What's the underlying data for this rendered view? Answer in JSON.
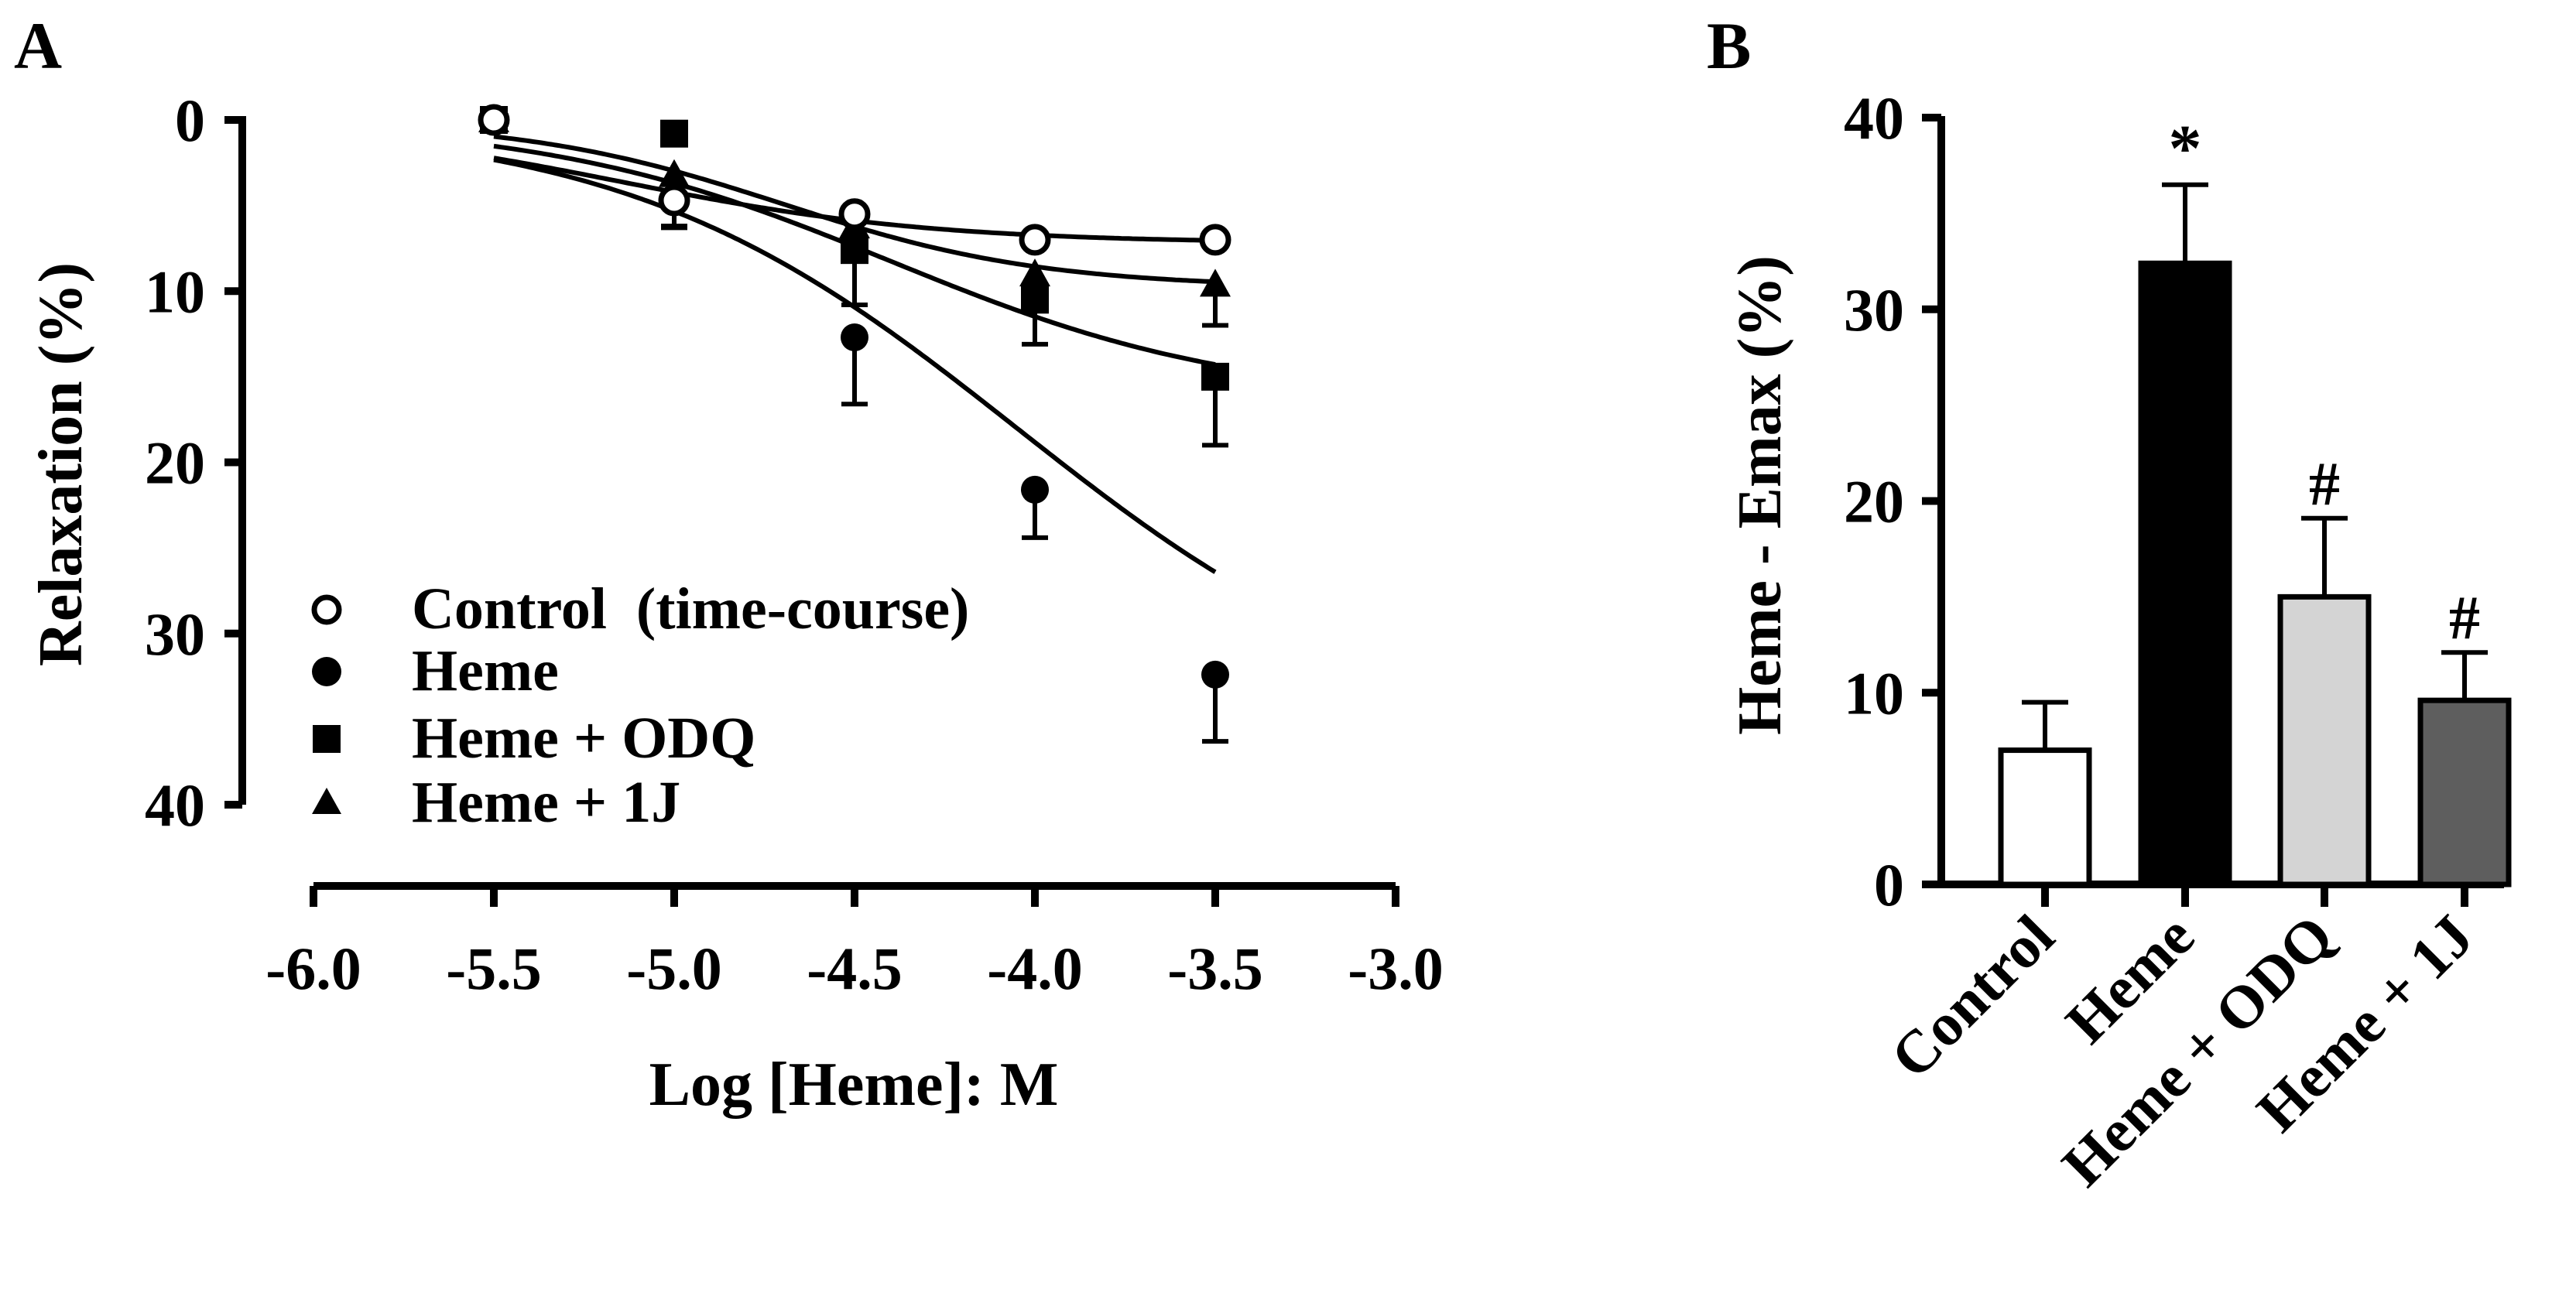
{
  "chart_data": [
    {
      "panel_label": "A",
      "type": "line",
      "xlabel": "Log [Heme]: M",
      "ylabel": "Relaxation (%)",
      "xlim": [
        -6.0,
        -3.0
      ],
      "ylim": [
        0,
        40
      ],
      "y_inverted": true,
      "x_ticks": [
        -6.0,
        -5.5,
        -5.0,
        -4.5,
        -4.0,
        -3.5,
        -3.0
      ],
      "x_tick_labels": [
        "-6.0",
        "-5.5",
        "-5.0",
        "-4.5",
        "-4.0",
        "-3.5",
        "-3.0"
      ],
      "y_ticks": [
        0,
        10,
        20,
        30,
        40
      ],
      "y_tick_labels": [
        "0",
        "10",
        "20",
        "30",
        "40"
      ],
      "grid": false,
      "legend_position": "bottom-left",
      "series": [
        {
          "name": "Control  (time-course)",
          "marker": "open-circle",
          "x": [
            -5.5,
            -5.0,
            -4.5,
            -4.0,
            -3.5
          ],
          "values": [
            0.0,
            4.7,
            5.5,
            7.0,
            7.0
          ],
          "error": [
            0.0,
            1.5,
            0.0,
            0.0,
            0.0
          ],
          "fit": {
            "bottom": 7.2,
            "top": 0.0,
            "logEC50": -5.15,
            "hill": 1.0
          }
        },
        {
          "name": "Heme",
          "marker": "filled-circle",
          "x": [
            -5.5,
            -5.0,
            -4.5,
            -4.0,
            -3.5
          ],
          "values": [
            0.0,
            4.8,
            12.7,
            21.6,
            32.4
          ],
          "error": [
            0.0,
            1.5,
            3.9,
            2.8,
            3.9
          ],
          "fit": {
            "bottom": 36.0,
            "top": 0.0,
            "logEC50": -4.05,
            "hill": 0.8
          }
        },
        {
          "name": "Heme + ODQ",
          "marker": "filled-square",
          "x": [
            -5.5,
            -5.0,
            -4.5,
            -4.0,
            -3.5
          ],
          "values": [
            0.0,
            0.8,
            7.6,
            10.5,
            15.0
          ],
          "error": [
            0.0,
            0.0,
            3.2,
            2.6,
            4.0
          ],
          "fit": {
            "bottom": 16.5,
            "top": 0.0,
            "logEC50": -4.4,
            "hill": 0.9
          }
        },
        {
          "name": "Heme + 1J",
          "marker": "filled-triangle",
          "x": [
            -5.5,
            -5.0,
            -4.5,
            -4.0,
            -3.5
          ],
          "values": [
            0.0,
            3.2,
            6.2,
            9.0,
            9.6
          ],
          "error": [
            0.0,
            0.0,
            0.0,
            0.0,
            2.4
          ],
          "fit": {
            "bottom": 9.8,
            "top": 0.0,
            "logEC50": -4.7,
            "hill": 1.2
          }
        }
      ]
    },
    {
      "panel_label": "B",
      "type": "bar",
      "ylabel": "Heme - Emax (%)",
      "xlabel": "",
      "ylim": [
        0,
        40
      ],
      "y_ticks": [
        0,
        10,
        20,
        30,
        40
      ],
      "y_tick_labels": [
        "0",
        "10",
        "20",
        "30",
        "40"
      ],
      "grid": false,
      "categories": [
        "Control",
        "Heme",
        "Heme + ODQ",
        "Heme + 1J"
      ],
      "values": [
        7.0,
        32.4,
        15.0,
        9.6
      ],
      "error": [
        2.5,
        4.1,
        4.1,
        2.5
      ],
      "bar_colors": [
        "#ffffff",
        "#000000",
        "#d4d4d4",
        "#5e5e5e"
      ],
      "annotations": [
        "",
        "*",
        "#",
        "#"
      ]
    }
  ]
}
